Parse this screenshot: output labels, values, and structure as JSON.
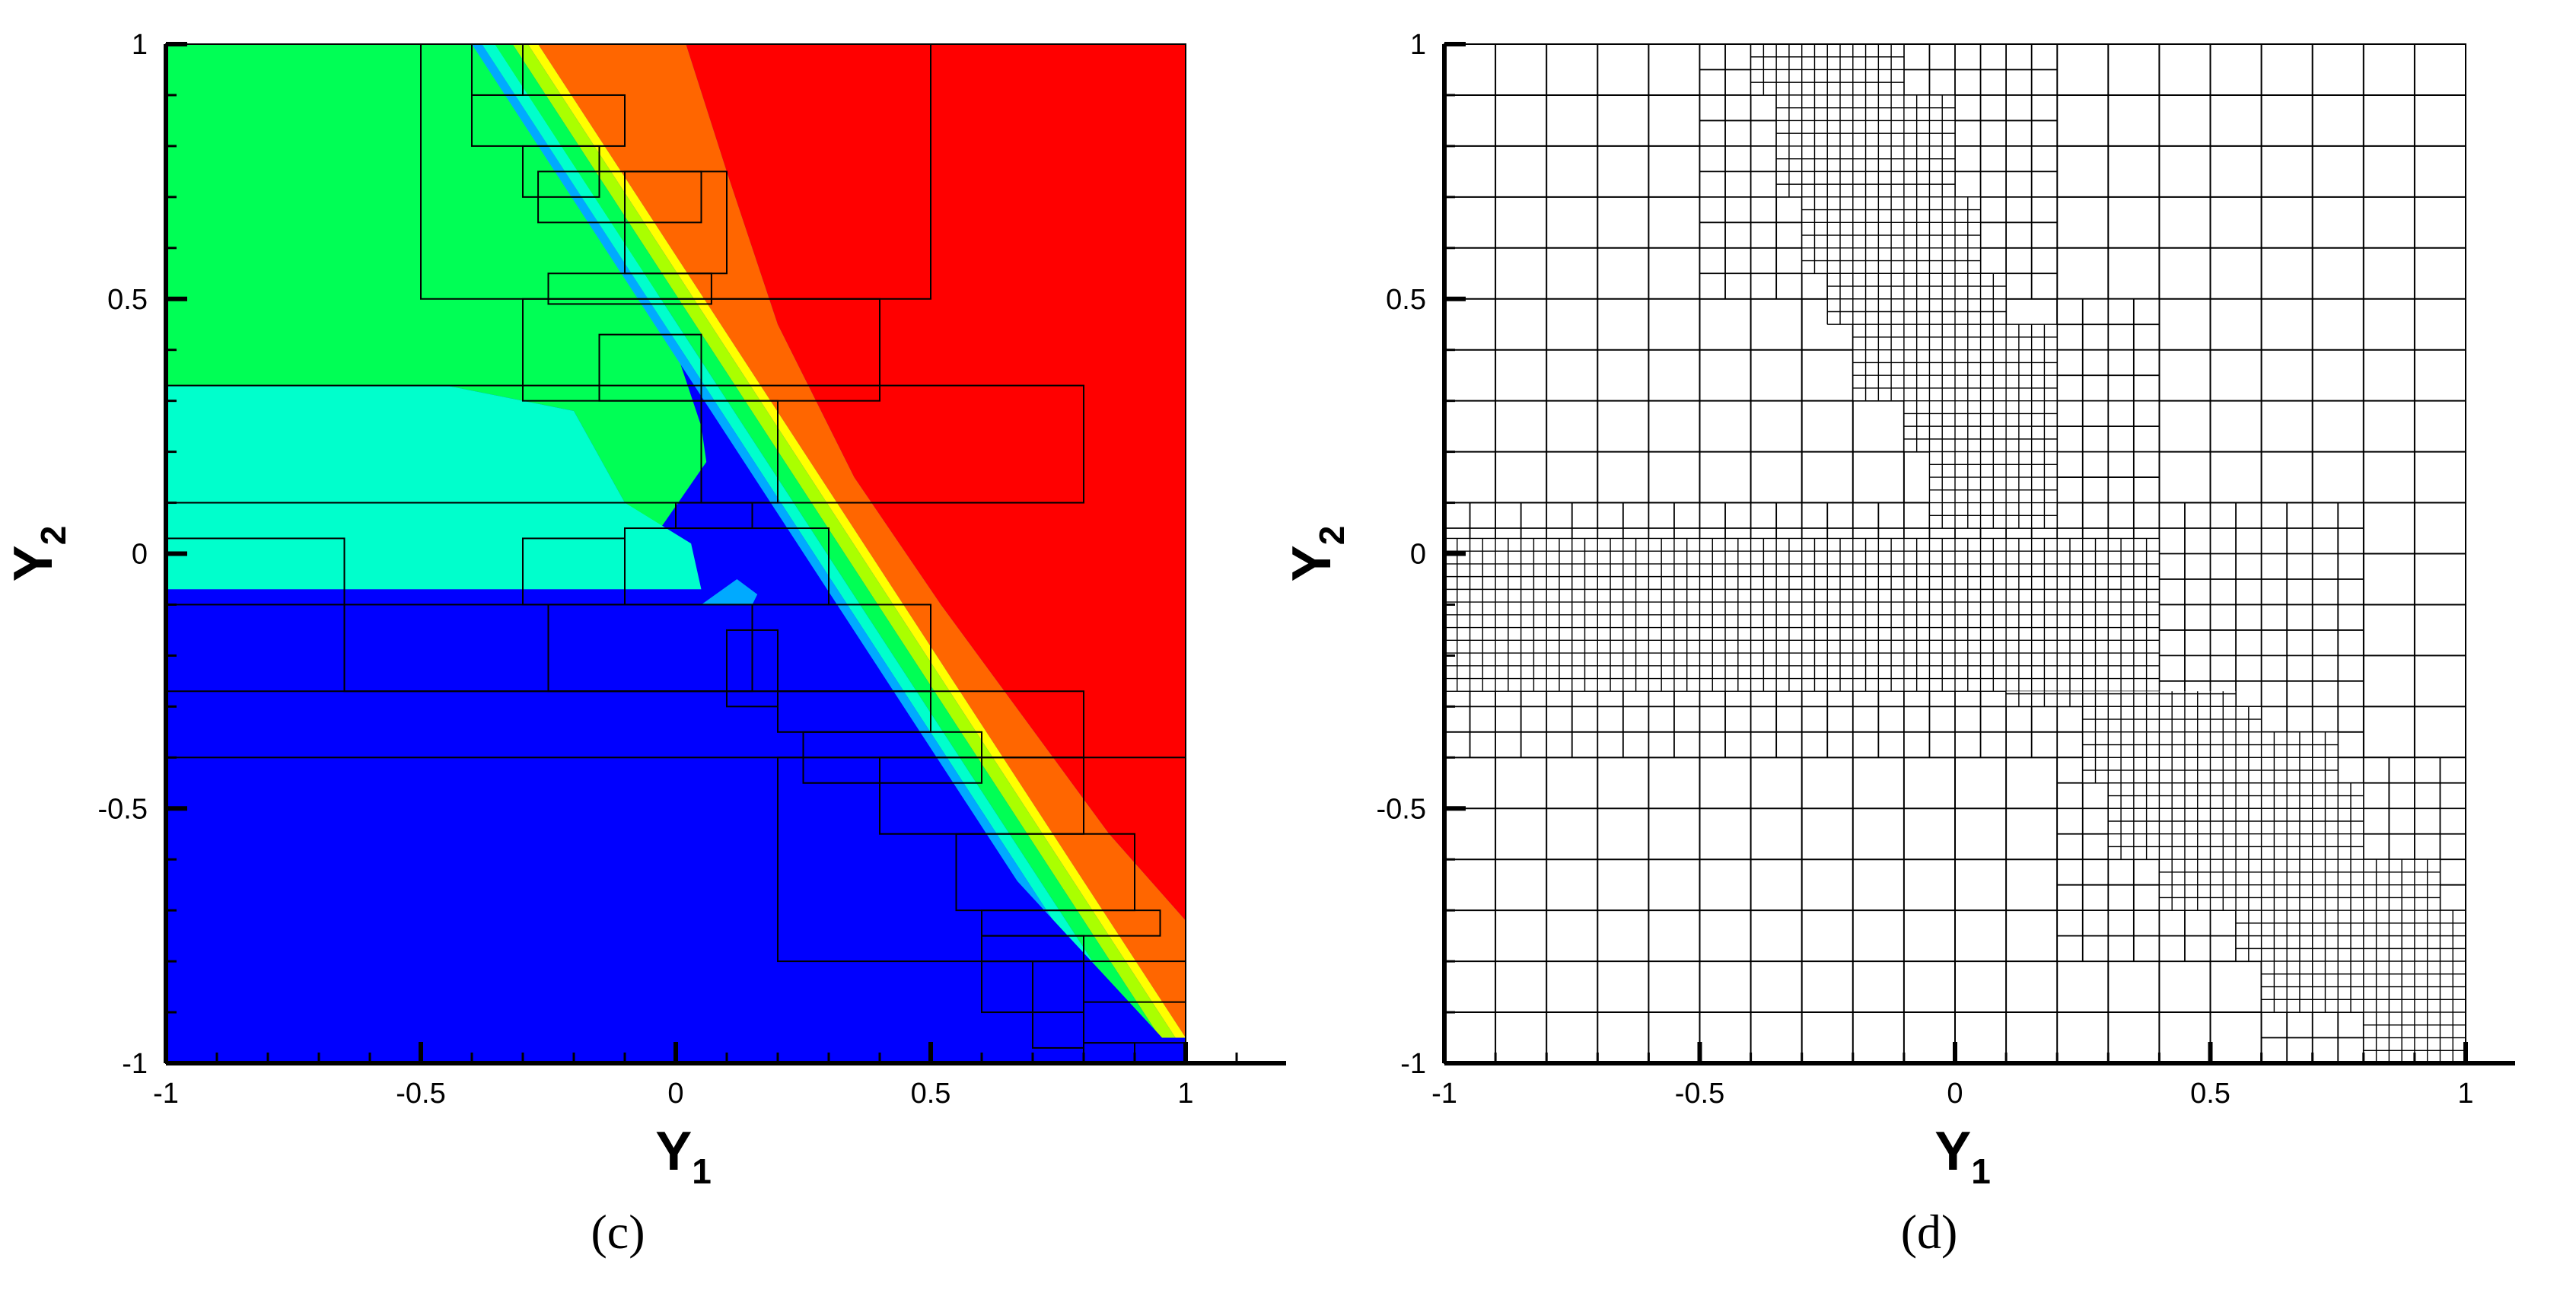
{
  "chart_data": [
    {
      "type": "contour",
      "panel_label": "(c)",
      "xlabel_main": "Y",
      "xlabel_sub": "1",
      "ylabel_main": "Y",
      "ylabel_sub": "2",
      "xlim": [
        -1,
        1
      ],
      "ylim": [
        -1,
        1
      ],
      "x_ticks": [
        -1,
        -0.5,
        0,
        0.5,
        1
      ],
      "y_ticks": [
        -1,
        -0.5,
        0,
        0.5,
        1
      ],
      "x_tick_labels": [
        "-1",
        "-0.5",
        "0",
        "0.5",
        "1"
      ],
      "y_tick_labels": [
        "-1",
        "-0.5",
        "0",
        "0.5",
        "1"
      ],
      "colors": {
        "green": "#00ff55",
        "aqua": "#00ffcc",
        "light_blue": "#00aaff",
        "blue": "#0000ff",
        "red": "#ff0000",
        "orange": "#ff6600",
        "yellow": "#ffff00",
        "lime": "#aaff00",
        "cell_lines": "#000000"
      },
      "regions": [
        {
          "name": "green",
          "polygon": [
            [
              -1,
              1
            ],
            [
              -0.32,
              1
            ],
            [
              -0.05,
              0.55
            ],
            [
              0.05,
              0.25
            ],
            [
              0.06,
              0.18
            ],
            [
              -0.03,
              0.05
            ],
            [
              -0.1,
              0.1
            ],
            [
              -0.2,
              0.28
            ],
            [
              -0.45,
              0.33
            ],
            [
              -1,
              0.33
            ]
          ]
        },
        {
          "name": "aqua",
          "polygon": [
            [
              -1,
              0.33
            ],
            [
              -0.45,
              0.33
            ],
            [
              -0.2,
              0.28
            ],
            [
              -0.1,
              0.1
            ],
            [
              0.03,
              0.02
            ],
            [
              0.05,
              -0.07
            ],
            [
              -1,
              -0.07
            ]
          ]
        },
        {
          "name": "blue",
          "polygon": [
            [
              -1,
              -0.07
            ],
            [
              0.08,
              -0.07
            ],
            [
              0.14,
              -0.08
            ],
            [
              0.9,
              -0.9
            ],
            [
              1,
              -1
            ],
            [
              -1,
              -1
            ]
          ]
        },
        {
          "name": "red",
          "polygon": [
            [
              0.02,
              1
            ],
            [
              1,
              1
            ],
            [
              1,
              -0.72
            ],
            [
              0.85,
              -0.55
            ],
            [
              0.52,
              -0.1
            ],
            [
              0.35,
              0.15
            ],
            [
              0.2,
              0.45
            ],
            [
              0.1,
              0.75
            ]
          ]
        }
      ],
      "front_bands": [
        {
          "color": "orange",
          "width_y": 0.38
        },
        {
          "color": "yellow",
          "width_y": 0.02
        },
        {
          "color": "lime",
          "width_y": 0.03
        },
        {
          "color": "green",
          "width_y": 0.035
        },
        {
          "color": "aqua",
          "width_y": 0.025
        },
        {
          "color": "light_blue",
          "width_y": 0.02
        }
      ],
      "front": {
        "x0": -0.32,
        "y0": 1,
        "x1": 1,
        "y1": -1
      },
      "cells": [
        [
          -0.5,
          0.5,
          0.5,
          1
        ],
        [
          -0.4,
          -0.3,
          0.9,
          1
        ],
        [
          -0.4,
          -0.1,
          0.8,
          0.9
        ],
        [
          -0.3,
          -0.15,
          0.7,
          0.8
        ],
        [
          -0.27,
          0.05,
          0.65,
          0.75
        ],
        [
          -0.1,
          0.1,
          0.55,
          0.75
        ],
        [
          -0.25,
          0.07,
          0.49,
          0.55
        ],
        [
          -0.3,
          0.4,
          0.3,
          0.5
        ],
        [
          -0.15,
          0.05,
          0.3,
          0.43
        ],
        [
          0.05,
          0.2,
          0.1,
          0.3
        ],
        [
          -1,
          0.8,
          0.1,
          0.33
        ],
        [
          -1,
          -0.65,
          -0.1,
          0.03
        ],
        [
          -0.3,
          -0.1,
          -0.1,
          0.03
        ],
        [
          0,
          0.15,
          0.05,
          0.1
        ],
        [
          -0.1,
          0.3,
          -0.1,
          0.05
        ],
        [
          -0.65,
          0.5,
          -0.27,
          -0.1
        ],
        [
          -0.25,
          0.15,
          -0.27,
          -0.1
        ],
        [
          0.1,
          0.2,
          -0.3,
          -0.15
        ],
        [
          -1,
          0.8,
          -0.4,
          -0.27
        ],
        [
          0.2,
          0.5,
          -0.35,
          -0.27
        ],
        [
          0.25,
          0.6,
          -0.45,
          -0.35
        ],
        [
          0.2,
          1,
          -0.8,
          -0.4
        ],
        [
          0.4,
          0.8,
          -0.55,
          -0.4
        ],
        [
          0.55,
          0.9,
          -0.7,
          -0.55
        ],
        [
          0.6,
          0.95,
          -0.75,
          -0.7
        ],
        [
          0.6,
          0.8,
          -0.8,
          -0.75
        ],
        [
          0.6,
          0.8,
          -0.9,
          -0.8
        ],
        [
          0.7,
          0.8,
          -0.97,
          -0.8
        ],
        [
          0.8,
          1,
          -0.96,
          -0.88
        ],
        [
          0.8,
          0.9,
          -1,
          -0.96
        ]
      ]
    },
    {
      "type": "mesh",
      "panel_label": "(d)",
      "xlabel_main": "Y",
      "xlabel_sub": "1",
      "ylabel_main": "Y",
      "ylabel_sub": "2",
      "xlim": [
        -1,
        1
      ],
      "ylim": [
        -1,
        1
      ],
      "x_ticks": [
        -1,
        -0.5,
        0,
        0.5,
        1
      ],
      "y_ticks": [
        -1,
        -0.5,
        0,
        0.5,
        1
      ],
      "x_tick_labels": [
        "-1",
        "-0.5",
        "0",
        "0.5",
        "1"
      ],
      "y_tick_labels": [
        "-1",
        "-0.5",
        "0",
        "0.5",
        "1"
      ],
      "coarse_step": 0.1,
      "refinement": [
        {
          "level": 1,
          "rects": [
            [
              -0.5,
              0.2,
              0.5,
              1
            ],
            [
              -1,
              0.8,
              -0.4,
              0.1
            ],
            [
              0.2,
              0.4,
              0.1,
              0.5
            ],
            [
              0.4,
              0.8,
              -0.4,
              0.1
            ],
            [
              0.2,
              1,
              -0.8,
              -0.4
            ],
            [
              0.6,
              1,
              -1,
              -0.8
            ]
          ]
        },
        {
          "level": 2,
          "rects": [
            [
              -0.4,
              -0.1,
              0.9,
              1
            ],
            [
              -0.35,
              0,
              0.7,
              0.9
            ],
            [
              -0.3,
              0.05,
              0.55,
              0.7
            ],
            [
              -0.25,
              0.1,
              0.45,
              0.55
            ],
            [
              -0.2,
              0.2,
              0.3,
              0.45
            ],
            [
              -0.1,
              0.2,
              0.2,
              0.3
            ],
            [
              -0.05,
              0.2,
              0.05,
              0.2
            ],
            [
              -1,
              0.4,
              -0.27,
              0.03
            ],
            [
              0.1,
              0.55,
              -0.3,
              -0.27
            ],
            [
              0.25,
              0.6,
              -0.35,
              -0.3
            ],
            [
              0.25,
              0.75,
              -0.45,
              -0.35
            ],
            [
              0.3,
              0.8,
              -0.6,
              -0.45
            ],
            [
              0.4,
              0.95,
              -0.7,
              -0.6
            ],
            [
              0.55,
              1,
              -0.8,
              -0.7
            ],
            [
              0.6,
              1,
              -0.9,
              -0.8
            ],
            [
              0.8,
              1,
              -1,
              -0.9
            ]
          ]
        }
      ]
    }
  ]
}
